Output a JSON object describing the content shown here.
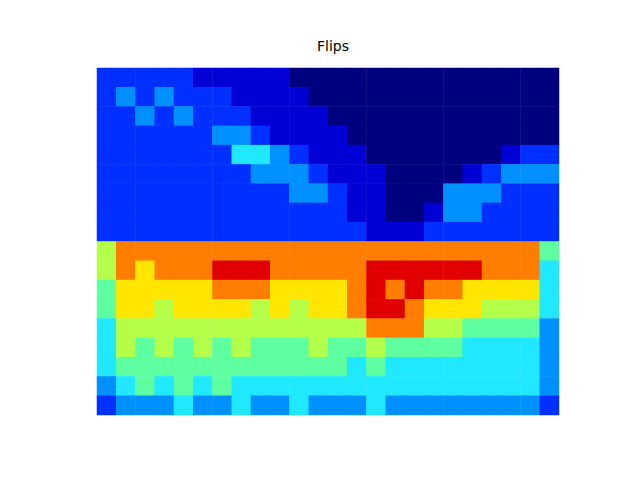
{
  "chart_data": {
    "type": "heatmap",
    "title": "Flips",
    "tick_labels": false,
    "value_range": [
      0,
      9
    ],
    "cells": [
      [
        2,
        2,
        2,
        2,
        2,
        1,
        1,
        1,
        1,
        1,
        0,
        0,
        0,
        0,
        0,
        0,
        0,
        0,
        0,
        0,
        0,
        0,
        0,
        0
      ],
      [
        2,
        3,
        2,
        3,
        2,
        2,
        2,
        1,
        1,
        1,
        1,
        0,
        0,
        0,
        0,
        0,
        0,
        0,
        0,
        0,
        0,
        0,
        0,
        0
      ],
      [
        2,
        2,
        3,
        2,
        3,
        2,
        2,
        2,
        1,
        1,
        1,
        1,
        0,
        0,
        0,
        0,
        0,
        0,
        0,
        0,
        0,
        0,
        0,
        0
      ],
      [
        2,
        2,
        2,
        2,
        2,
        2,
        3,
        3,
        2,
        1,
        1,
        1,
        1,
        0,
        0,
        0,
        0,
        0,
        0,
        0,
        0,
        0,
        0,
        0
      ],
      [
        2,
        2,
        2,
        2,
        2,
        2,
        2,
        4,
        4,
        3,
        2,
        1,
        1,
        1,
        0,
        0,
        0,
        0,
        0,
        0,
        0,
        1,
        2,
        2
      ],
      [
        2,
        2,
        2,
        2,
        2,
        2,
        2,
        2,
        3,
        3,
        3,
        2,
        1,
        1,
        1,
        0,
        0,
        0,
        0,
        1,
        2,
        3,
        3,
        3
      ],
      [
        2,
        2,
        2,
        2,
        2,
        2,
        2,
        2,
        2,
        2,
        3,
        3,
        2,
        1,
        1,
        0,
        0,
        0,
        3,
        3,
        3,
        2,
        2,
        2
      ],
      [
        2,
        2,
        2,
        2,
        2,
        2,
        2,
        2,
        2,
        2,
        2,
        2,
        2,
        1,
        1,
        0,
        0,
        1,
        3,
        3,
        2,
        2,
        2,
        2
      ],
      [
        2,
        2,
        2,
        2,
        2,
        2,
        2,
        2,
        2,
        2,
        2,
        2,
        2,
        2,
        1,
        1,
        1,
        2,
        2,
        2,
        2,
        2,
        2,
        2
      ],
      [
        6,
        8,
        8,
        8,
        8,
        8,
        8,
        8,
        8,
        8,
        8,
        8,
        8,
        8,
        8,
        8,
        8,
        8,
        8,
        8,
        8,
        8,
        8,
        5
      ],
      [
        6,
        8,
        7,
        8,
        8,
        8,
        9,
        9,
        9,
        8,
        8,
        8,
        8,
        8,
        9,
        9,
        9,
        9,
        9,
        9,
        8,
        8,
        8,
        4
      ],
      [
        5,
        7,
        7,
        7,
        7,
        7,
        8,
        8,
        8,
        7,
        7,
        7,
        7,
        8,
        9,
        8,
        9,
        8,
        8,
        7,
        7,
        7,
        7,
        4
      ],
      [
        5,
        7,
        7,
        6,
        7,
        7,
        7,
        7,
        6,
        7,
        6,
        7,
        7,
        8,
        9,
        9,
        8,
        7,
        7,
        7,
        6,
        6,
        6,
        4
      ],
      [
        4,
        6,
        6,
        6,
        6,
        6,
        6,
        6,
        6,
        6,
        6,
        6,
        6,
        6,
        8,
        8,
        8,
        6,
        6,
        5,
        5,
        5,
        5,
        3
      ],
      [
        4,
        6,
        5,
        6,
        5,
        6,
        5,
        6,
        5,
        5,
        5,
        6,
        5,
        5,
        6,
        5,
        5,
        5,
        5,
        4,
        4,
        4,
        4,
        3
      ],
      [
        4,
        5,
        5,
        5,
        5,
        5,
        5,
        5,
        5,
        5,
        5,
        5,
        5,
        4,
        5,
        4,
        4,
        4,
        4,
        4,
        4,
        4,
        4,
        3
      ],
      [
        3,
        4,
        5,
        4,
        5,
        4,
        5,
        4,
        4,
        4,
        4,
        4,
        4,
        4,
        4,
        4,
        4,
        4,
        4,
        4,
        4,
        4,
        4,
        3
      ],
      [
        2,
        3,
        3,
        3,
        4,
        3,
        3,
        4,
        3,
        3,
        4,
        3,
        3,
        3,
        4,
        3,
        3,
        3,
        3,
        3,
        3,
        3,
        3,
        2
      ]
    ]
  }
}
